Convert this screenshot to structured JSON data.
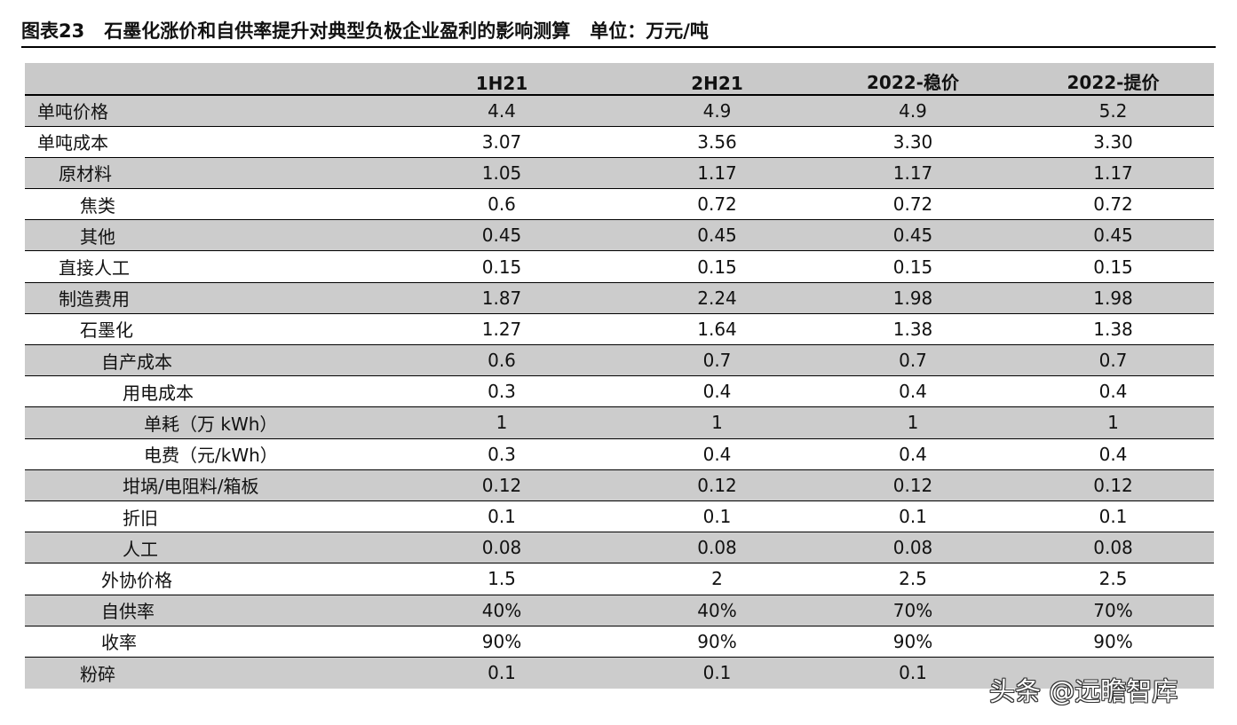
{
  "title": {
    "label": "图表23",
    "text": "石墨化涨价和自供率提升对典型负极企业盈利的影响测算",
    "unit": "单位：万元/吨"
  },
  "table": {
    "columns": [
      "",
      "1H21",
      "2H21",
      "2022-稳价",
      "2022-提价"
    ],
    "rows": [
      {
        "label": "单吨价格",
        "values": [
          "4.4",
          "4.9",
          "4.9",
          "5.2"
        ]
      },
      {
        "label": "单吨成本",
        "values": [
          "3.07",
          "3.56",
          "3.30",
          "3.30"
        ]
      },
      {
        "label": "原材料",
        "values": [
          "1.05",
          "1.17",
          "1.17",
          "1.17"
        ]
      },
      {
        "label": "焦类",
        "values": [
          "0.6",
          "0.72",
          "0.72",
          "0.72"
        ]
      },
      {
        "label": "其他",
        "values": [
          "0.45",
          "0.45",
          "0.45",
          "0.45"
        ]
      },
      {
        "label": "直接人工",
        "values": [
          "0.15",
          "0.15",
          "0.15",
          "0.15"
        ]
      },
      {
        "label": "制造费用",
        "values": [
          "1.87",
          "2.24",
          "1.98",
          "1.98"
        ]
      },
      {
        "label": "石墨化",
        "values": [
          "1.27",
          "1.64",
          "1.38",
          "1.38"
        ]
      },
      {
        "label": "自产成本",
        "values": [
          "0.6",
          "0.7",
          "0.7",
          "0.7"
        ]
      },
      {
        "label": "用电成本",
        "values": [
          "0.3",
          "0.4",
          "0.4",
          "0.4"
        ]
      },
      {
        "label": "单耗（万 kWh）",
        "values": [
          "1",
          "1",
          "1",
          "1"
        ]
      },
      {
        "label": "电费（元/kWh）",
        "values": [
          "0.3",
          "0.4",
          "0.4",
          "0.4"
        ]
      },
      {
        "label": "坩埚/电阻料/箱板",
        "values": [
          "0.12",
          "0.12",
          "0.12",
          "0.12"
        ]
      },
      {
        "label": "折旧",
        "values": [
          "0.1",
          "0.1",
          "0.1",
          "0.1"
        ]
      },
      {
        "label": "人工",
        "values": [
          "0.08",
          "0.08",
          "0.08",
          "0.08"
        ]
      },
      {
        "label": "外协价格",
        "values": [
          "1.5",
          "2",
          "2.5",
          "2.5"
        ]
      },
      {
        "label": "自供率",
        "values": [
          "40%",
          "40%",
          "70%",
          "70%"
        ]
      },
      {
        "label": "收率",
        "values": [
          "90%",
          "90%",
          "90%",
          "90%"
        ]
      },
      {
        "label": "粉碎",
        "values": [
          "0.1",
          "0.1",
          "0.1",
          ""
        ]
      }
    ]
  },
  "watermark": "头条 @远瞻智库",
  "colors": {
    "header_bg": "#c9c9c9",
    "shaded_row_bg": "#cccccc",
    "rule": "#000000"
  }
}
